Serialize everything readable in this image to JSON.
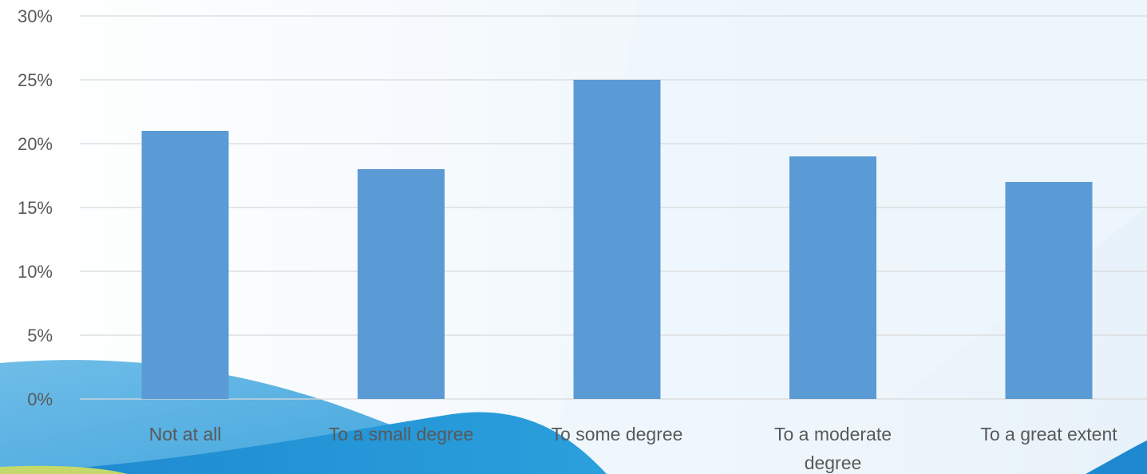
{
  "chart_data": {
    "type": "bar",
    "categories": [
      "Not at all",
      "To a small degree",
      "To some degree",
      "To a moderate degree",
      "To a great extent"
    ],
    "values": [
      21,
      18,
      25,
      19,
      17
    ],
    "value_format": "percent",
    "title": "",
    "xlabel": "",
    "ylabel": "",
    "ylim": [
      0,
      30
    ],
    "yticks": [
      "0%",
      "5%",
      "10%",
      "15%",
      "20%",
      "25%",
      "30%"
    ],
    "grid": true,
    "legend": "none",
    "colors": {
      "bar": "#5b9bd5",
      "grid": "#d9d9d9",
      "text": "#595959"
    }
  }
}
